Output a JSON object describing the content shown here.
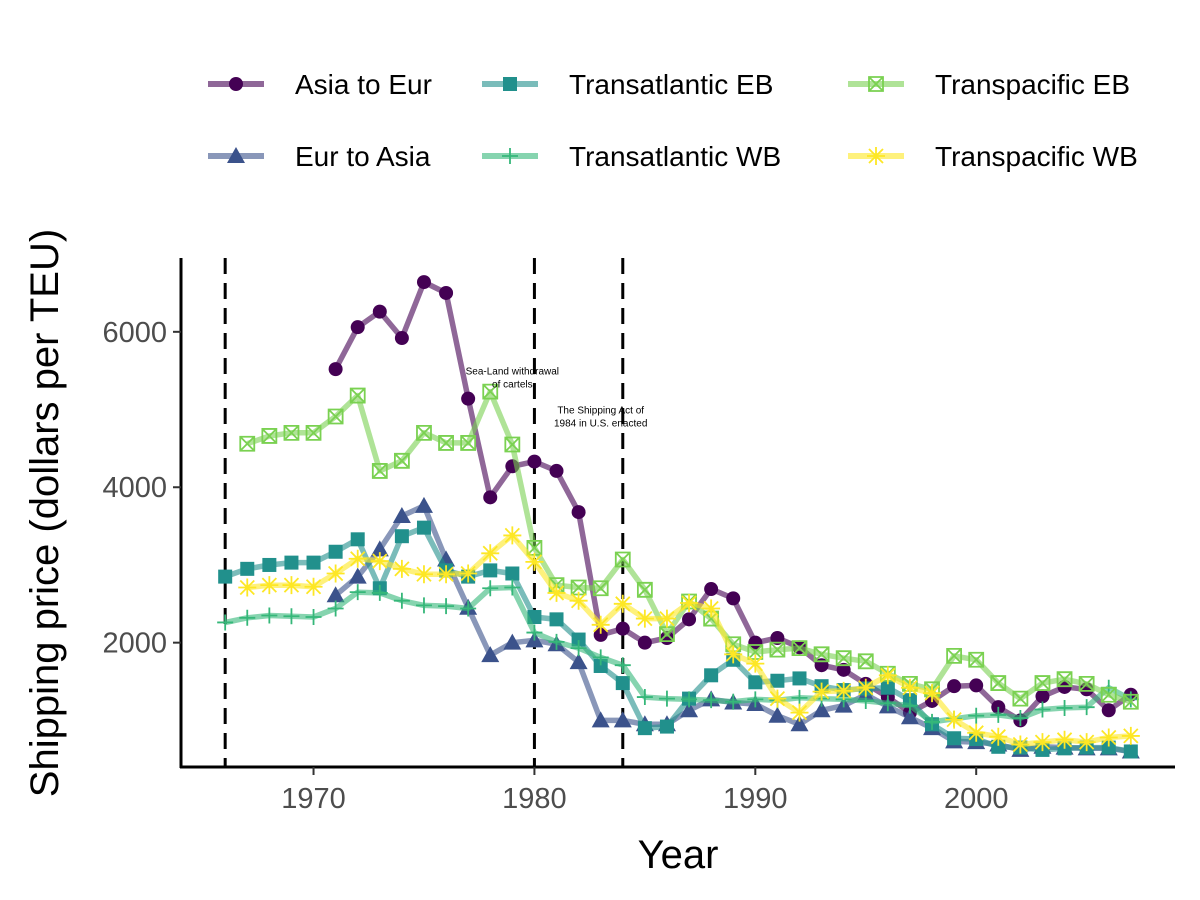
{
  "chart_data": {
    "type": "line",
    "xlabel": "Year",
    "ylabel": "Shipping price (dollars per TEU)",
    "xlim": [
      1964,
      2009
    ],
    "ylim": [
      400,
      6950
    ],
    "x_ticks": [
      1970,
      1980,
      1990,
      2000
    ],
    "y_ticks": [
      2000,
      4000,
      6000
    ],
    "grid": false,
    "legend_position": "top",
    "vlines": [
      1966,
      1980,
      1984
    ],
    "annotations": [
      {
        "lines": [
          "Sea-Land withdrawal",
          "of cartels"
        ],
        "x": 1979,
        "y": 5450
      },
      {
        "lines": [
          "The Shipping Act of",
          "1984 in U.S. enacted"
        ],
        "x": 1983,
        "y": 4950
      }
    ],
    "series": [
      {
        "name": "Asia to Eur",
        "color": "#440154",
        "marker": "circle",
        "x": [
          1971,
          1972,
          1973,
          1974,
          1975,
          1976,
          1977,
          1978,
          1979,
          1980,
          1981,
          1982,
          1983,
          1984,
          1985,
          1986,
          1987,
          1988,
          1989,
          1990,
          1991,
          1992,
          1993,
          1994,
          1995,
          1996,
          1997,
          1998,
          1999,
          2000,
          2001,
          2002,
          2003,
          2004,
          2005,
          2006,
          2007
        ],
        "values": [
          5520,
          6060,
          6260,
          5920,
          6640,
          6500,
          5140,
          3870,
          4270,
          4330,
          4210,
          3680,
          2100,
          2180,
          2000,
          2060,
          2300,
          2690,
          2570,
          2000,
          2060,
          1940,
          1710,
          1650,
          1470,
          1300,
          1100,
          1250,
          1440,
          1450,
          1170,
          1000,
          1310,
          1430,
          1400,
          1130,
          1330
        ]
      },
      {
        "name": "Eur to Asia",
        "color": "#3b528b",
        "marker": "triangle",
        "x": [
          1971,
          1972,
          1973,
          1974,
          1975,
          1976,
          1977,
          1978,
          1979,
          1980,
          1981,
          1982,
          1983,
          1984,
          1985,
          1986,
          1987,
          1988,
          1989,
          1990,
          1991,
          1992,
          1993,
          1994,
          1995,
          1996,
          1997,
          1998,
          1999,
          2000,
          2001,
          2002,
          2003,
          2004,
          2005,
          2006,
          2007
        ],
        "values": [
          2610,
          2850,
          3200,
          3630,
          3760,
          3070,
          2450,
          1840,
          2000,
          2030,
          1980,
          1750,
          1000,
          1000,
          950,
          950,
          1130,
          1270,
          1230,
          1210,
          1060,
          950,
          1130,
          1190,
          1330,
          1180,
          1040,
          900,
          730,
          720,
          690,
          620,
          660,
          650,
          640,
          640,
          600
        ]
      },
      {
        "name": "Transatlantic EB",
        "color": "#21908c",
        "marker": "square",
        "x": [
          1966,
          1967,
          1968,
          1969,
          1970,
          1971,
          1972,
          1973,
          1974,
          1975,
          1976,
          1977,
          1978,
          1979,
          1980,
          1981,
          1982,
          1983,
          1984,
          1985,
          1986,
          1987,
          1988,
          1989,
          1990,
          1991,
          1992,
          1993,
          1994,
          1995,
          1996,
          1997,
          1998,
          1999,
          2000,
          2001,
          2002,
          2003,
          2004,
          2005,
          2006,
          2007
        ],
        "values": [
          2850,
          2950,
          3000,
          3030,
          3030,
          3170,
          3330,
          2700,
          3370,
          3480,
          2930,
          2850,
          2930,
          2890,
          2330,
          2300,
          2040,
          1700,
          1480,
          900,
          920,
          1280,
          1580,
          1780,
          1490,
          1510,
          1540,
          1440,
          1390,
          1410,
          1420,
          1260,
          950,
          770,
          760,
          660,
          650,
          620,
          640,
          650,
          650,
          600
        ]
      },
      {
        "name": "Transatlantic WB",
        "color": "#35b779",
        "marker": "plus",
        "x": [
          1966,
          1967,
          1968,
          1969,
          1970,
          1971,
          1972,
          1973,
          1974,
          1975,
          1976,
          1977,
          1978,
          1979,
          1980,
          1981,
          1982,
          1983,
          1984,
          1985,
          1986,
          1987,
          1988,
          1989,
          1990,
          1991,
          1992,
          1993,
          1994,
          1995,
          1996,
          1997,
          1998,
          1999,
          2000,
          2001,
          2002,
          2003,
          2004,
          2005,
          2006,
          2007
        ],
        "values": [
          2260,
          2320,
          2350,
          2340,
          2330,
          2440,
          2650,
          2640,
          2540,
          2480,
          2470,
          2440,
          2700,
          2710,
          2130,
          2010,
          1930,
          1810,
          1710,
          1300,
          1280,
          1270,
          1260,
          1240,
          1270,
          1260,
          1290,
          1280,
          1270,
          1250,
          1220,
          1190,
          980,
          1020,
          1060,
          1070,
          1030,
          1140,
          1160,
          1170,
          1420,
          1270
        ]
      },
      {
        "name": "Transpacific EB",
        "color": "#7ad151",
        "marker": "boxx",
        "x": [
          1967,
          1968,
          1969,
          1970,
          1971,
          1972,
          1973,
          1974,
          1975,
          1976,
          1977,
          1978,
          1979,
          1980,
          1981,
          1982,
          1983,
          1984,
          1985,
          1986,
          1987,
          1988,
          1989,
          1990,
          1991,
          1992,
          1993,
          1994,
          1995,
          1996,
          1997,
          1998,
          1999,
          2000,
          2001,
          2002,
          2003,
          2004,
          2005,
          2006,
          2007
        ],
        "values": [
          4560,
          4660,
          4700,
          4700,
          4910,
          5180,
          4210,
          4340,
          4700,
          4570,
          4570,
          5230,
          4550,
          3220,
          2740,
          2710,
          2700,
          3070,
          2680,
          2110,
          2530,
          2310,
          1980,
          1880,
          1910,
          1930,
          1850,
          1800,
          1760,
          1600,
          1470,
          1400,
          1830,
          1780,
          1480,
          1280,
          1480,
          1530,
          1470,
          1330,
          1240
        ]
      },
      {
        "name": "Transpacific WB",
        "color": "#fde725",
        "marker": "star",
        "x": [
          1967,
          1968,
          1969,
          1970,
          1971,
          1972,
          1973,
          1974,
          1975,
          1976,
          1977,
          1978,
          1979,
          1980,
          1981,
          1982,
          1983,
          1984,
          1985,
          1986,
          1987,
          1988,
          1989,
          1990,
          1991,
          1992,
          1993,
          1994,
          1995,
          1996,
          1997,
          1998,
          1999,
          2000,
          2001,
          2002,
          2003,
          2004,
          2005,
          2006,
          2007
        ],
        "values": [
          2710,
          2740,
          2740,
          2720,
          2890,
          3080,
          3050,
          2950,
          2880,
          2880,
          2890,
          3150,
          3380,
          3040,
          2640,
          2540,
          2230,
          2500,
          2310,
          2310,
          2510,
          2440,
          1850,
          1730,
          1280,
          1100,
          1370,
          1380,
          1420,
          1580,
          1420,
          1350,
          1010,
          840,
          790,
          690,
          720,
          750,
          720,
          780,
          800
        ]
      }
    ]
  }
}
